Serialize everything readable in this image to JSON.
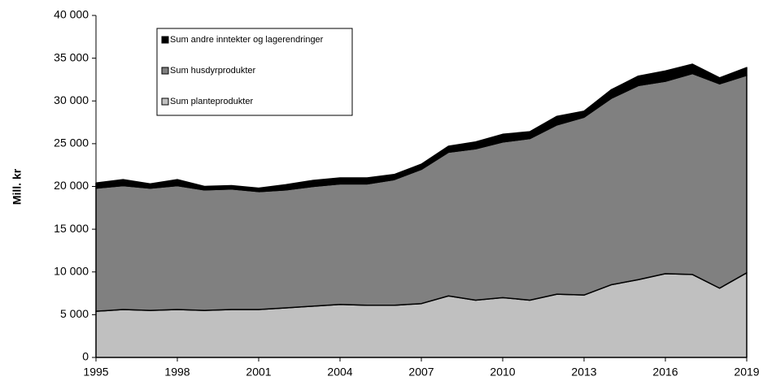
{
  "chart_data": {
    "type": "stacked_area",
    "y_label": "Mill. kr",
    "x": [
      1995,
      1996,
      1997,
      1998,
      1999,
      2000,
      2001,
      2002,
      2003,
      2004,
      2005,
      2006,
      2007,
      2008,
      2009,
      2010,
      2011,
      2012,
      2013,
      2014,
      2015,
      2016,
      2017,
      2018,
      2019
    ],
    "series": [
      {
        "name": "Sum planteprodukter",
        "color": "#c0c0c0",
        "values": [
          5400,
          5600,
          5500,
          5600,
          5500,
          5600,
          5600,
          5800,
          6000,
          6200,
          6100,
          6100,
          6300,
          7200,
          6700,
          7000,
          6700,
          7400,
          7300,
          8500,
          9100,
          9800,
          9700,
          8100,
          9900
        ]
      },
      {
        "name": "Sum husdyrprodukter",
        "color": "#808080",
        "values": [
          14400,
          14500,
          14300,
          14500,
          14100,
          14100,
          13800,
          13800,
          14000,
          14100,
          14200,
          14700,
          15700,
          16800,
          17700,
          18200,
          18900,
          19800,
          20800,
          21800,
          22700,
          22500,
          23500,
          23900,
          23100
        ]
      },
      {
        "name": "Sum andre inntekter og lagerendringer",
        "color": "#000000",
        "values": [
          600,
          700,
          500,
          700,
          400,
          400,
          400,
          600,
          700,
          700,
          700,
          600,
          600,
          700,
          800,
          900,
          800,
          1000,
          700,
          1000,
          1100,
          1200,
          1100,
          700,
          900
        ]
      }
    ],
    "xlim": [
      1995,
      2019
    ],
    "xticks": [
      1995,
      1998,
      2001,
      2004,
      2007,
      2010,
      2013,
      2016,
      2019
    ],
    "ylim": [
      0,
      40000
    ],
    "yticks": [
      0,
      {
        "value": 5000,
        "label": "5 000"
      },
      {
        "value": 10000,
        "label": "10 000"
      },
      {
        "value": 15000,
        "label": "15 000"
      },
      {
        "value": 20000,
        "label": "20 000"
      },
      {
        "value": 25000,
        "label": "25 000"
      },
      {
        "value": 30000,
        "label": "30 000"
      },
      {
        "value": 35000,
        "label": "35 000"
      },
      {
        "value": 40000,
        "label": "40 000"
      }
    ],
    "legend": "upper left"
  }
}
